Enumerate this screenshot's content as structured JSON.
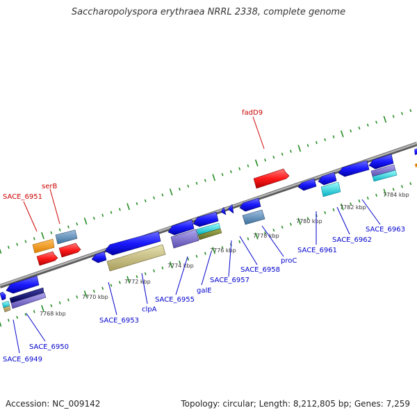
{
  "title": "Saccharopolyspora erythraea NRRL 2338, complete genome",
  "footer": {
    "accession": "Accession: NC_009142",
    "summary": "Topology: circular; Length: 8,212,805 bp; Genes: 7,259"
  },
  "colors": {
    "backbone": "#909090",
    "ruler": "#228b22",
    "forward_label": "#cc0000",
    "reverse_label": "#0000cc"
  },
  "ticks": [
    "7768 kbp",
    "7770 kbp",
    "7772 kbp",
    "7774 kbp",
    "7776 kbp",
    "7778 kbp",
    "7780 kbp",
    "7782 kbp",
    "7784 kbp"
  ],
  "forward_labels": [
    "SACE_6951",
    "serB",
    "fadD9"
  ],
  "reverse_labels": [
    "SACE_6949",
    "SACE_6950",
    "SACE_6953",
    "clpA",
    "SACE_6955",
    "galE",
    "SACE_6957",
    "SACE_6958",
    "proC",
    "SACE_6961",
    "SACE_6962",
    "SACE_6963"
  ]
}
